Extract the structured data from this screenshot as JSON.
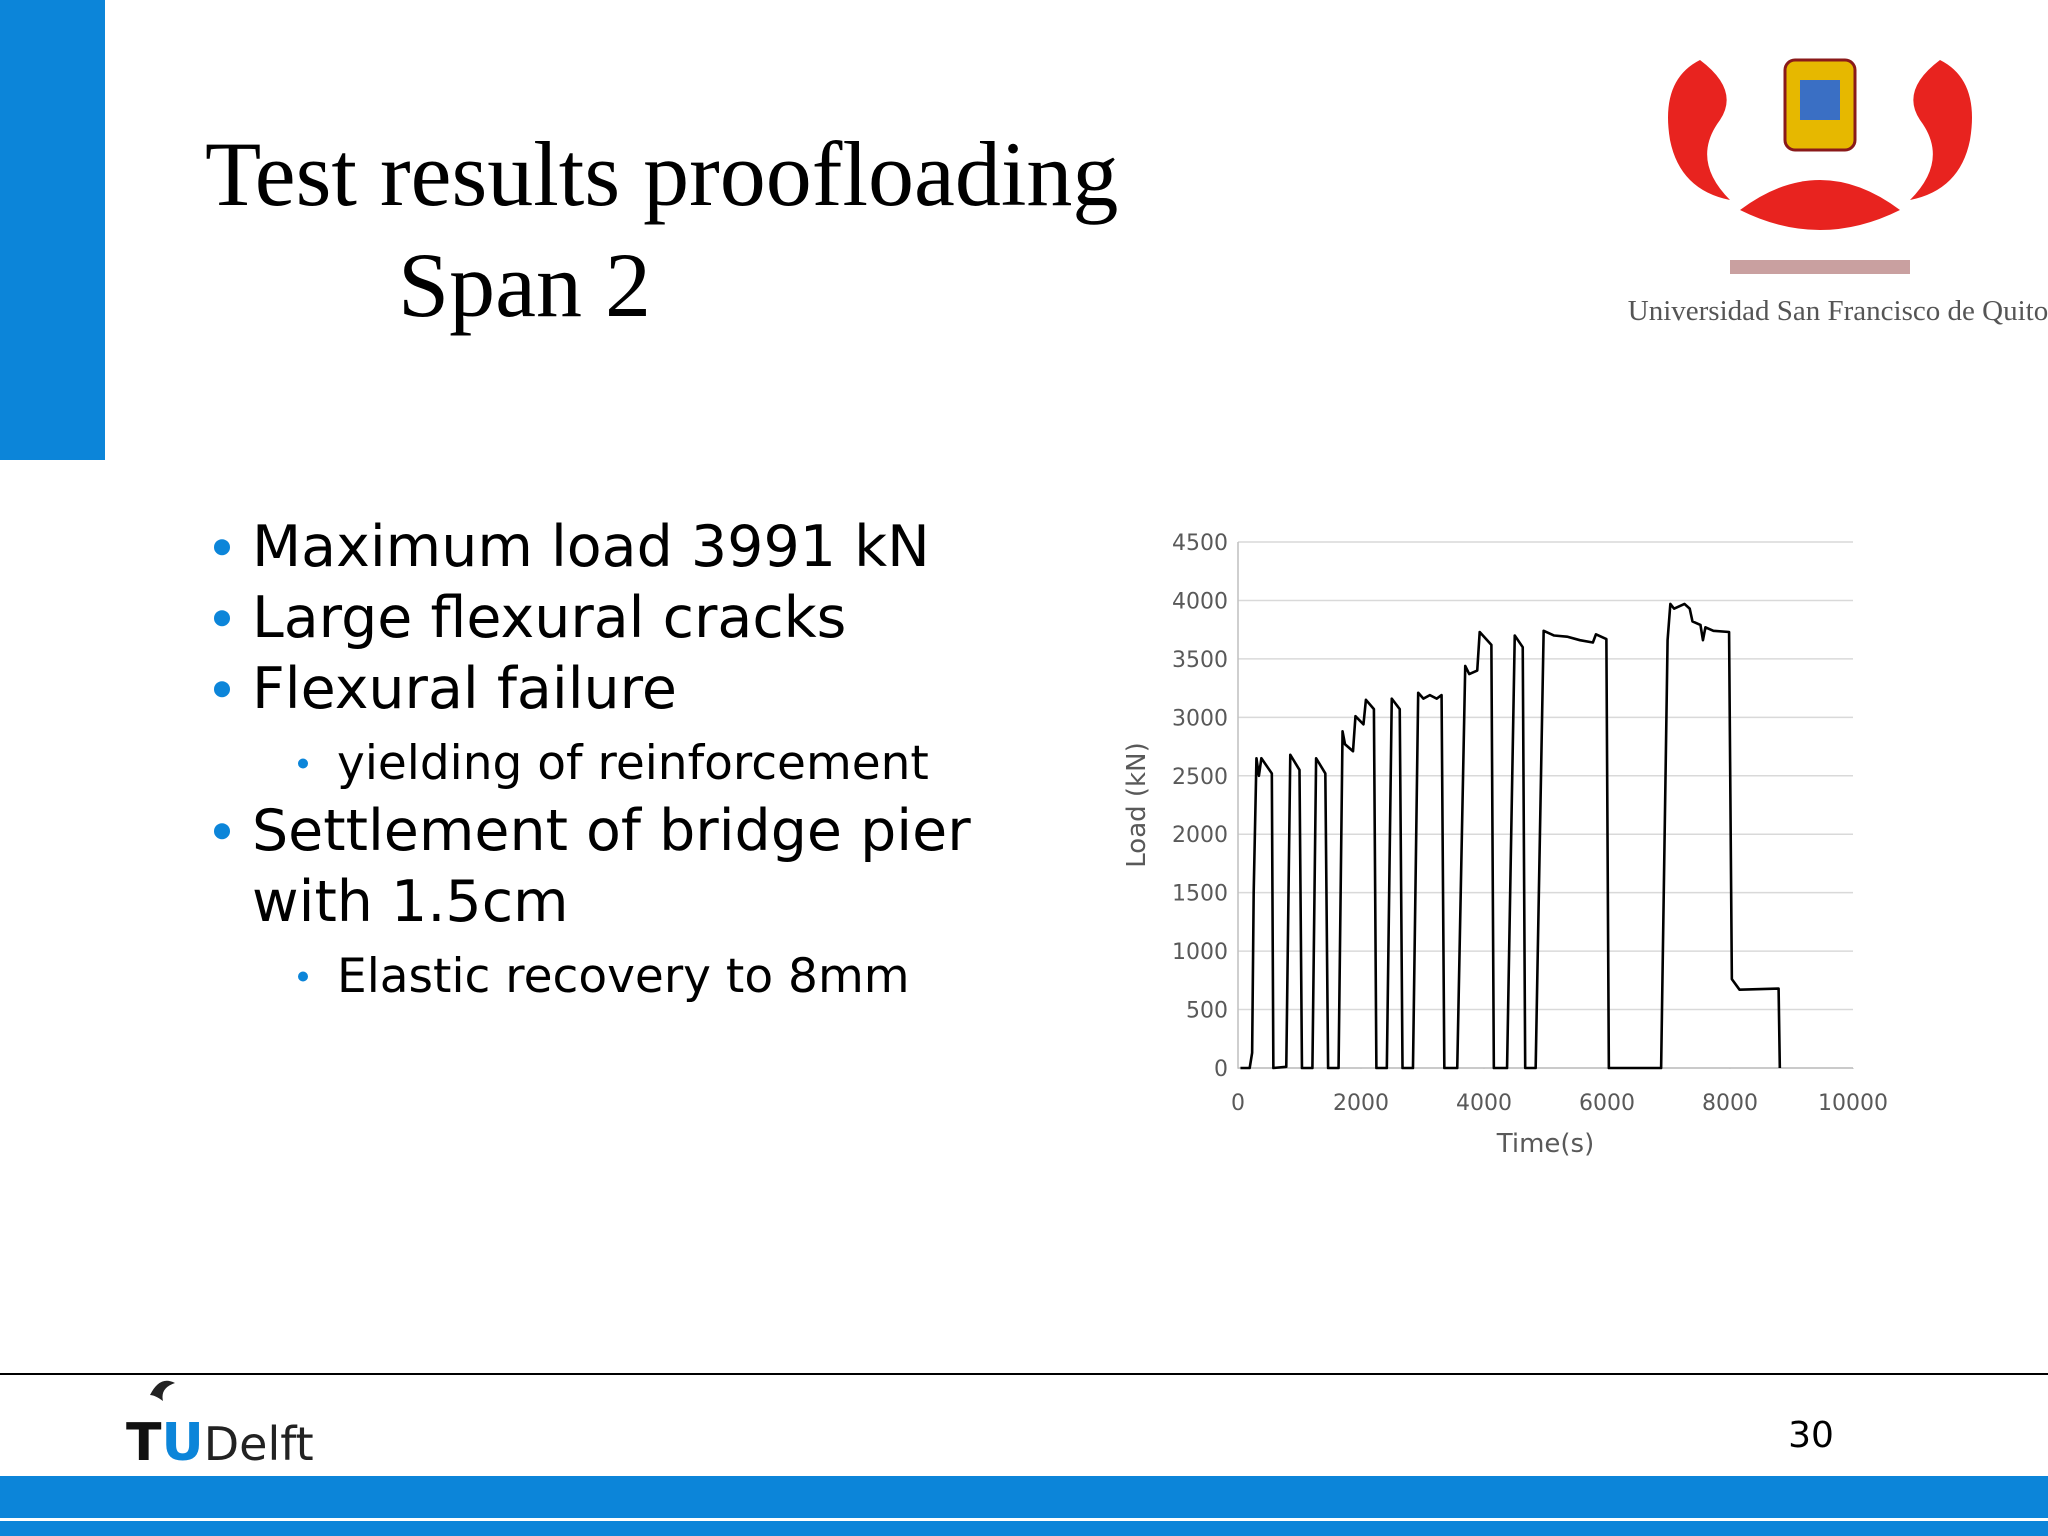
{
  "slide": {
    "title_lines": [
      "Test results proofloading",
      "Span 2"
    ],
    "bullets": [
      {
        "level": 1,
        "lines": [
          "Maximum load 3991 kN"
        ]
      },
      {
        "level": 1,
        "lines": [
          "Large flexural cracks"
        ]
      },
      {
        "level": 1,
        "lines": [
          "Flexural failure"
        ]
      },
      {
        "level": 2,
        "lines": [
          "yielding of reinforcement"
        ]
      },
      {
        "level": 1,
        "lines": [
          "Settlement of bridge pier",
          "with 1.5cm"
        ]
      },
      {
        "level": 2,
        "lines": [
          "Elastic recovery to 8mm"
        ]
      }
    ],
    "university": "Universidad San Francisco de Quito",
    "footer_logo": [
      "T",
      "U",
      "Delft"
    ],
    "page_number": "30"
  },
  "chart_data": {
    "type": "line",
    "xlabel": "Time(s)",
    "ylabel": "Load (kN)",
    "color": "#000000",
    "x": [
      40,
      190,
      230,
      255,
      300,
      340,
      380,
      550,
      575,
      785,
      850,
      1000,
      1040,
      1210,
      1270,
      1420,
      1465,
      1635,
      1700,
      1740,
      1870,
      1910,
      2040,
      2080,
      2210,
      2250,
      2420,
      2500,
      2630,
      2675,
      2845,
      2930,
      3015,
      3120,
      3230,
      3310,
      3355,
      3565,
      3695,
      3760,
      3890,
      3930,
      4120,
      4160,
      4375,
      4500,
      4630,
      4670,
      4840,
      4970,
      5140,
      5350,
      5560,
      5770,
      5820,
      5990,
      6030,
      6880,
      6985,
      7030,
      7090,
      7260,
      7345,
      7390,
      7520,
      7560,
      7600,
      7730,
      7985,
      8030,
      8155,
      8790,
      8810
    ],
    "values": [
      0,
      0,
      130,
      1500,
      2650,
      2500,
      2650,
      2520,
      0,
      10,
      2680,
      2550,
      0,
      0,
      2650,
      2520,
      0,
      0,
      2880,
      2770,
      2710,
      3010,
      2940,
      3150,
      3070,
      0,
      0,
      3160,
      3070,
      0,
      0,
      3210,
      3160,
      3190,
      3160,
      3190,
      0,
      0,
      3440,
      3370,
      3400,
      3730,
      3620,
      0,
      0,
      3700,
      3600,
      0,
      0,
      3740,
      3700,
      3690,
      3660,
      3640,
      3710,
      3670,
      0,
      0,
      3660,
      3970,
      3930,
      3970,
      3930,
      3820,
      3790,
      3660,
      3770,
      3740,
      3730,
      760,
      670,
      680,
      0
    ],
    "xlim": [
      0,
      10000
    ],
    "xticks": [
      0,
      2000,
      4000,
      6000,
      8000,
      10000
    ],
    "ylim": [
      0,
      4500
    ],
    "yticks": [
      0,
      500,
      1000,
      1500,
      2000,
      2500,
      3000,
      3500,
      4000,
      4500
    ],
    "grid": true
  }
}
